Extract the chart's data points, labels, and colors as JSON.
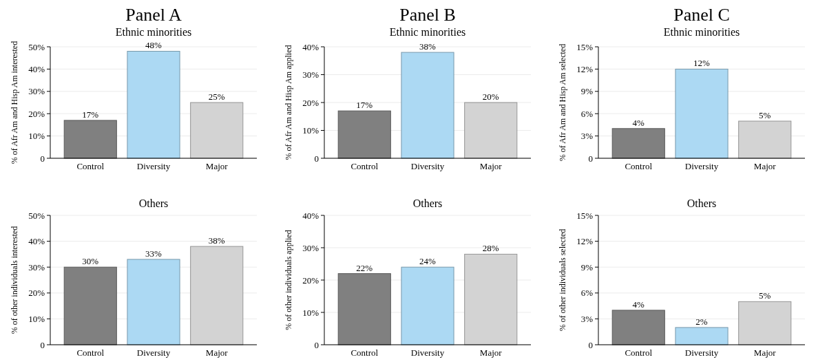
{
  "chart_data": [
    {
      "type": "bar",
      "title": "Panel A",
      "subtitle": "Ethnic minorities",
      "ylabel": "% of Afr Am and Hisp Am interested",
      "categories": [
        "Control",
        "Diversity",
        "Major"
      ],
      "values": [
        17,
        48,
        25
      ],
      "value_labels": [
        "17%",
        "48%",
        "25%"
      ],
      "colors": [
        "#808080",
        "#acd9f3",
        "#d3d3d3"
      ],
      "ylim": [
        0,
        50
      ],
      "yticks": [
        {
          "value": 0,
          "label": "0"
        },
        {
          "value": 10,
          "label": "10%"
        },
        {
          "value": 20,
          "label": "20%"
        },
        {
          "value": 30,
          "label": "30%"
        },
        {
          "value": 40,
          "label": "40%"
        },
        {
          "value": 50,
          "label": "50%"
        }
      ],
      "grid": "y"
    },
    {
      "type": "bar",
      "title": "Panel B",
      "subtitle": "Ethnic minorities",
      "ylabel": "% of Afr Am and Hisp Am applied",
      "categories": [
        "Control",
        "Diversity",
        "Major"
      ],
      "values": [
        17,
        38,
        20
      ],
      "value_labels": [
        "17%",
        "38%",
        "20%"
      ],
      "colors": [
        "#808080",
        "#acd9f3",
        "#d3d3d3"
      ],
      "ylim": [
        0,
        40
      ],
      "yticks": [
        {
          "value": 0,
          "label": "0"
        },
        {
          "value": 10,
          "label": "10%"
        },
        {
          "value": 20,
          "label": "20%"
        },
        {
          "value": 30,
          "label": "30%"
        },
        {
          "value": 40,
          "label": "40%"
        }
      ],
      "grid": "y"
    },
    {
      "type": "bar",
      "title": "Panel C",
      "subtitle": "Ethnic minorities",
      "ylabel": "% of Afr Am and Hisp Am selected",
      "categories": [
        "Control",
        "Diversity",
        "Major"
      ],
      "values": [
        4,
        12,
        5
      ],
      "value_labels": [
        "4%",
        "12%",
        "5%"
      ],
      "colors": [
        "#808080",
        "#acd9f3",
        "#d3d3d3"
      ],
      "ylim": [
        0,
        15
      ],
      "yticks": [
        {
          "value": 0,
          "label": "0"
        },
        {
          "value": 3,
          "label": "3%"
        },
        {
          "value": 6,
          "label": "6%"
        },
        {
          "value": 9,
          "label": "9%"
        },
        {
          "value": 12,
          "label": "12%"
        },
        {
          "value": 15,
          "label": "15%"
        }
      ],
      "grid": "y"
    },
    {
      "type": "bar",
      "title": "Others",
      "ylabel": "% of other individuals interested",
      "categories": [
        "Control",
        "Diversity",
        "Major"
      ],
      "values": [
        30,
        33,
        38
      ],
      "value_labels": [
        "30%",
        "33%",
        "38%"
      ],
      "colors": [
        "#808080",
        "#acd9f3",
        "#d3d3d3"
      ],
      "ylim": [
        0,
        50
      ],
      "yticks": [
        {
          "value": 0,
          "label": "0"
        },
        {
          "value": 10,
          "label": "10%"
        },
        {
          "value": 20,
          "label": "20%"
        },
        {
          "value": 30,
          "label": "30%"
        },
        {
          "value": 40,
          "label": "40%"
        },
        {
          "value": 50,
          "label": "50%"
        }
      ],
      "grid": "y"
    },
    {
      "type": "bar",
      "title": "Others",
      "ylabel": "% of other individuals applied",
      "categories": [
        "Control",
        "Diversity",
        "Major"
      ],
      "values": [
        22,
        24,
        28
      ],
      "value_labels": [
        "22%",
        "24%",
        "28%"
      ],
      "colors": [
        "#808080",
        "#acd9f3",
        "#d3d3d3"
      ],
      "ylim": [
        0,
        40
      ],
      "yticks": [
        {
          "value": 0,
          "label": "0"
        },
        {
          "value": 10,
          "label": "10%"
        },
        {
          "value": 20,
          "label": "20%"
        },
        {
          "value": 30,
          "label": "30%"
        },
        {
          "value": 40,
          "label": "40%"
        }
      ],
      "grid": "y"
    },
    {
      "type": "bar",
      "title": "Others",
      "ylabel": "% of other individuals selected",
      "categories": [
        "Control",
        "Diversity",
        "Major"
      ],
      "values": [
        4,
        2,
        5
      ],
      "value_labels": [
        "4%",
        "2%",
        "5%"
      ],
      "colors": [
        "#808080",
        "#acd9f3",
        "#d3d3d3"
      ],
      "ylim": [
        0,
        15
      ],
      "yticks": [
        {
          "value": 0,
          "label": "0"
        },
        {
          "value": 3,
          "label": "3%"
        },
        {
          "value": 6,
          "label": "6%"
        },
        {
          "value": 9,
          "label": "9%"
        },
        {
          "value": 12,
          "label": "12%"
        },
        {
          "value": 15,
          "label": "15%"
        }
      ],
      "grid": "y"
    }
  ]
}
